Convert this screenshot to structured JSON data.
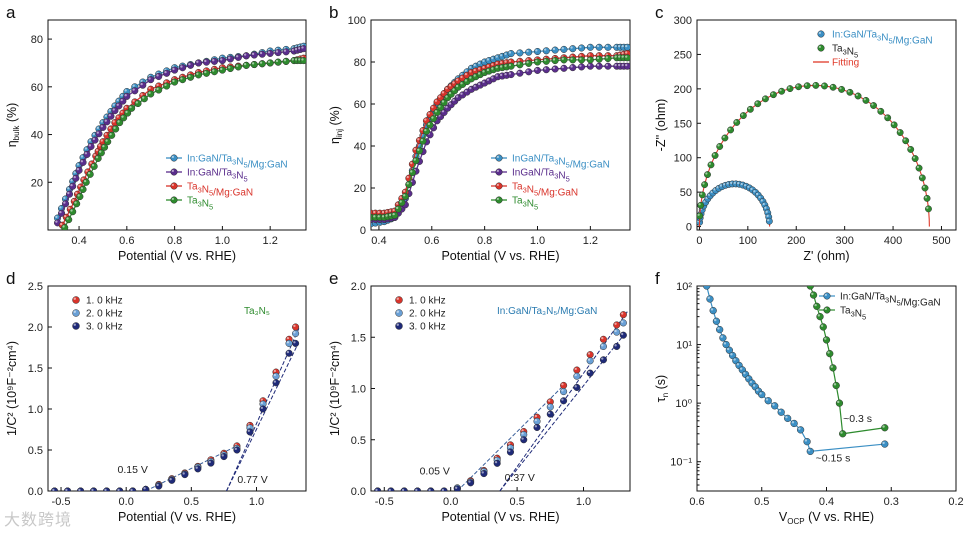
{
  "colors": {
    "blue": "#3b8fc4",
    "purple": "#5a2d8c",
    "red": "#d9342b",
    "green": "#2e8b2e",
    "navy": "#1f2a78",
    "lightblue": "#6aa0d6",
    "fit": "#e03a2a",
    "teal": "#2a7bb0"
  },
  "watermark": "大数跨境",
  "chart_data": [
    {
      "id": "a",
      "type": "line",
      "letter": "a",
      "xlabel": "Potential (V vs. RHE)",
      "ylabel": "η_bulk (%)",
      "xlim": [
        0.27,
        1.35
      ],
      "ylim": [
        0,
        88
      ],
      "xticks": [
        0.4,
        0.6,
        0.8,
        1.0,
        1.2
      ],
      "xticklabels": [
        "0.4",
        "0.6",
        "0.8",
        "1.0",
        "1.2"
      ],
      "yticks": [
        20,
        40,
        60,
        80
      ],
      "yticklabels": [
        "20",
        "40",
        "60",
        "80"
      ],
      "legend": [
        "In:GaN/Ta3N5/Mg:GaN",
        "In:GaN/Ta3N5",
        "Ta3N5/Mg:GaN",
        "Ta3N5"
      ],
      "series": [
        {
          "name": "In:GaN/Ta3N5/Mg:GaN",
          "color": "blue",
          "x": [
            0.31,
            0.36,
            0.4,
            0.45,
            0.5,
            0.55,
            0.6,
            0.7,
            0.8,
            0.9,
            1.0,
            1.1,
            1.2,
            1.3,
            1.34
          ],
          "y": [
            5,
            17,
            27,
            37,
            45,
            52,
            58,
            64,
            68,
            70,
            72,
            73,
            75,
            76,
            77
          ]
        },
        {
          "name": "In:GaN/Ta3N5",
          "color": "purple",
          "x": [
            0.31,
            0.36,
            0.4,
            0.45,
            0.5,
            0.55,
            0.6,
            0.7,
            0.8,
            0.9,
            1.0,
            1.1,
            1.2,
            1.3,
            1.34
          ],
          "y": [
            3,
            15,
            25,
            35,
            43,
            50,
            56,
            63,
            67,
            70,
            71,
            73,
            74,
            75,
            76
          ]
        },
        {
          "name": "Ta3N5/Mg:GaN",
          "color": "red",
          "x": [
            0.33,
            0.38,
            0.42,
            0.47,
            0.5,
            0.55,
            0.6,
            0.7,
            0.8,
            0.9,
            1.0,
            1.1,
            1.2,
            1.3,
            1.34
          ],
          "y": [
            2,
            12,
            21,
            31,
            37,
            45,
            51,
            59,
            63,
            66,
            68,
            69,
            70,
            71,
            72
          ]
        },
        {
          "name": "Ta3N5",
          "color": "green",
          "x": [
            0.34,
            0.39,
            0.43,
            0.48,
            0.52,
            0.57,
            0.62,
            0.7,
            0.8,
            0.9,
            1.0,
            1.1,
            1.2,
            1.3,
            1.34
          ],
          "y": [
            1,
            11,
            20,
            30,
            37,
            45,
            51,
            57,
            62,
            65,
            67,
            69,
            70,
            71,
            71
          ]
        }
      ]
    },
    {
      "id": "b",
      "type": "line",
      "letter": "b",
      "xlabel": "Potential (V vs. RHE)",
      "ylabel": "η_inj (%)",
      "xlim": [
        0.37,
        1.35
      ],
      "ylim": [
        0,
        100
      ],
      "xticks": [
        0.4,
        0.6,
        0.8,
        1.0,
        1.2
      ],
      "xticklabels": [
        "0.4",
        "0.6",
        "0.8",
        "1.0",
        "1.2"
      ],
      "yticks": [
        0,
        20,
        40,
        60,
        80,
        100
      ],
      "yticklabels": [
        "0",
        "20",
        "40",
        "60",
        "80",
        "100"
      ],
      "legend": [
        "InGaN/Ta3N5/Mg:GaN",
        "InGaN/Ta3N5",
        "Ta3N5/Mg:GaN",
        "Ta3N5"
      ],
      "series": [
        {
          "name": "InGaN/Ta3N5/Mg:GaN",
          "color": "blue",
          "x": [
            0.37,
            0.42,
            0.46,
            0.5,
            0.54,
            0.58,
            0.62,
            0.66,
            0.7,
            0.75,
            0.8,
            0.85,
            0.9,
            1.0,
            1.1,
            1.2,
            1.3,
            1.34
          ],
          "y": [
            3,
            4,
            6,
            15,
            35,
            50,
            60,
            67,
            72,
            77,
            80,
            82,
            84,
            85,
            86,
            87,
            87,
            87
          ]
        },
        {
          "name": "InGaN/Ta3N5",
          "color": "purple",
          "x": [
            0.37,
            0.42,
            0.46,
            0.5,
            0.54,
            0.58,
            0.62,
            0.66,
            0.7,
            0.75,
            0.8,
            0.85,
            0.9,
            1.0,
            1.1,
            1.2,
            1.3,
            1.34
          ],
          "y": [
            5,
            5,
            6,
            12,
            28,
            42,
            52,
            58,
            63,
            67,
            70,
            73,
            74,
            76,
            77,
            78,
            78,
            78
          ]
        },
        {
          "name": "Ta3N5/Mg:GaN",
          "color": "red",
          "x": [
            0.37,
            0.42,
            0.46,
            0.5,
            0.54,
            0.58,
            0.62,
            0.66,
            0.7,
            0.75,
            0.8,
            0.85,
            0.9,
            1.0,
            1.1,
            1.2,
            1.3,
            1.34
          ],
          "y": [
            8,
            8,
            9,
            18,
            38,
            52,
            61,
            67,
            71,
            75,
            77,
            79,
            80,
            81,
            82,
            83,
            83,
            84
          ]
        },
        {
          "name": "Ta3N5",
          "color": "green",
          "x": [
            0.37,
            0.42,
            0.46,
            0.5,
            0.54,
            0.58,
            0.62,
            0.66,
            0.7,
            0.75,
            0.8,
            0.85,
            0.9,
            1.0,
            1.1,
            1.2,
            1.3,
            1.34
          ],
          "y": [
            6,
            6,
            7,
            16,
            33,
            47,
            56,
            63,
            68,
            72,
            75,
            77,
            78,
            80,
            81,
            81,
            82,
            82
          ]
        }
      ]
    },
    {
      "id": "c",
      "type": "scatter",
      "letter": "c",
      "xlabel": "Z' (ohm)",
      "ylabel": "-Z'' (ohm)",
      "xlim": [
        -5,
        530
      ],
      "ylim": [
        -5,
        300
      ],
      "xticks": [
        0,
        100,
        200,
        300,
        400,
        500
      ],
      "xticklabels": [
        "0",
        "100",
        "200",
        "300",
        "400",
        "500"
      ],
      "yticks": [
        0,
        50,
        100,
        150,
        200,
        250,
        300
      ],
      "yticklabels": [
        "0",
        "50",
        "100",
        "150",
        "200",
        "250",
        "300"
      ],
      "legend": [
        "In:GaN/Ta3N5/Mg:GaN",
        "Ta3N5",
        "Fitting"
      ],
      "series": [
        {
          "name": "In:GaN/Ta3N5/Mg:GaN",
          "color": "blue",
          "arc": {
            "x0": 0,
            "x1": 145,
            "ymax": 62
          }
        },
        {
          "name": "Ta3N5",
          "color": "green",
          "arc": {
            "x0": 0,
            "x1": 475,
            "ymax": 205
          }
        }
      ]
    },
    {
      "id": "d",
      "type": "scatter",
      "letter": "d",
      "xlabel": "Potential (V vs. RHE)",
      "ylabel": "1/C² (10⁹F⁻²cm⁴)",
      "xlim": [
        -0.6,
        1.38
      ],
      "ylim": [
        0,
        2.5
      ],
      "xticks": [
        -0.5,
        0.0,
        0.5,
        1.0
      ],
      "xticklabels": [
        "-0.5",
        "0.0",
        "0.5",
        "1.0"
      ],
      "yticks": [
        0,
        0.5,
        1.0,
        1.5,
        2.0,
        2.5
      ],
      "yticklabels": [
        "0.0",
        "0.5",
        "1.0",
        "1.5",
        "2.0",
        "2.5"
      ],
      "legend": [
        "1. 0 kHz",
        "2. 0 kHz",
        "3. 0 kHz"
      ],
      "sample_label": "Ta₃N₅",
      "annotations": [
        {
          "text": "0.15 V",
          "x": 0.05,
          "y": 0.22
        },
        {
          "text": "0.77 V",
          "x": 0.97,
          "y": 0.1
        }
      ],
      "series": [
        {
          "name": "1. 0 kHz",
          "color": "red",
          "x": [
            -0.55,
            -0.45,
            -0.35,
            -0.25,
            -0.15,
            -0.05,
            0.05,
            0.15,
            0.25,
            0.35,
            0.45,
            0.55,
            0.65,
            0.75,
            0.85,
            0.95,
            1.05,
            1.15,
            1.25,
            1.3
          ],
          "y": [
            0,
            0,
            0,
            0,
            0,
            0,
            0,
            0.02,
            0.08,
            0.15,
            0.22,
            0.3,
            0.38,
            0.46,
            0.55,
            0.8,
            1.1,
            1.45,
            1.85,
            2.0
          ]
        },
        {
          "name": "2. 0 kHz",
          "color": "lightblue",
          "x": [
            -0.55,
            -0.45,
            -0.35,
            -0.25,
            -0.15,
            -0.05,
            0.05,
            0.15,
            0.25,
            0.35,
            0.45,
            0.55,
            0.65,
            0.75,
            0.85,
            0.95,
            1.05,
            1.15,
            1.25,
            1.3
          ],
          "y": [
            0,
            0,
            0,
            0,
            0,
            0,
            0,
            0.02,
            0.07,
            0.14,
            0.21,
            0.29,
            0.36,
            0.44,
            0.52,
            0.77,
            1.06,
            1.4,
            1.8,
            1.92
          ]
        },
        {
          "name": "3. 0 kHz",
          "color": "navy",
          "x": [
            -0.55,
            -0.45,
            -0.35,
            -0.25,
            -0.15,
            -0.05,
            0.05,
            0.15,
            0.25,
            0.35,
            0.45,
            0.55,
            0.65,
            0.75,
            0.85,
            0.95,
            1.05,
            1.15,
            1.25,
            1.3
          ],
          "y": [
            0,
            0,
            0,
            0,
            0,
            0,
            0,
            0.02,
            0.06,
            0.13,
            0.2,
            0.27,
            0.34,
            0.42,
            0.5,
            0.72,
            1.0,
            1.32,
            1.68,
            1.8
          ]
        }
      ]
    },
    {
      "id": "e",
      "type": "scatter",
      "letter": "e",
      "xlabel": "Potential (V vs. RHE)",
      "ylabel": "1/C² (10⁹F⁻²cm⁴)",
      "xlim": [
        -0.6,
        1.35
      ],
      "ylim": [
        0,
        2.0
      ],
      "xticks": [
        -0.5,
        0.0,
        0.5,
        1.0
      ],
      "xticklabels": [
        "-0.5",
        "0.0",
        "0.5",
        "1.0"
      ],
      "yticks": [
        0,
        0.5,
        1.0,
        1.5,
        2.0
      ],
      "yticklabels": [
        "0.0",
        "0.5",
        "1.0",
        "1.5",
        "2.0"
      ],
      "legend": [
        "1. 0 kHz",
        "2. 0 kHz",
        "3. 0 kHz"
      ],
      "sample_label": "In:GaN/Ta₃N₅/Mg:GaN",
      "annotations": [
        {
          "text": "0.05 V",
          "x": -0.12,
          "y": 0.16
        },
        {
          "text": "0.37 V",
          "x": 0.52,
          "y": 0.1
        }
      ],
      "series": [
        {
          "name": "1. 0 kHz",
          "color": "red",
          "x": [
            -0.55,
            -0.45,
            -0.35,
            -0.25,
            -0.15,
            -0.05,
            0.05,
            0.15,
            0.25,
            0.35,
            0.45,
            0.55,
            0.65,
            0.75,
            0.85,
            0.95,
            1.05,
            1.15,
            1.25,
            1.3
          ],
          "y": [
            0,
            0,
            0,
            0,
            0,
            0,
            0.03,
            0.1,
            0.2,
            0.32,
            0.45,
            0.58,
            0.72,
            0.87,
            1.03,
            1.18,
            1.33,
            1.48,
            1.62,
            1.72
          ]
        },
        {
          "name": "2. 0 kHz",
          "color": "lightblue",
          "x": [
            -0.55,
            -0.45,
            -0.35,
            -0.25,
            -0.15,
            -0.05,
            0.05,
            0.15,
            0.25,
            0.35,
            0.45,
            0.55,
            0.65,
            0.75,
            0.85,
            0.95,
            1.05,
            1.15,
            1.25,
            1.3
          ],
          "y": [
            0,
            0,
            0,
            0,
            0,
            0,
            0.03,
            0.09,
            0.19,
            0.3,
            0.42,
            0.55,
            0.68,
            0.82,
            0.97,
            1.12,
            1.27,
            1.41,
            1.55,
            1.64
          ]
        },
        {
          "name": "3. 0 kHz",
          "color": "navy",
          "x": [
            -0.55,
            -0.45,
            -0.35,
            -0.25,
            -0.15,
            -0.05,
            0.05,
            0.15,
            0.25,
            0.35,
            0.45,
            0.55,
            0.65,
            0.75,
            0.85,
            0.95,
            1.05,
            1.15,
            1.25,
            1.3
          ],
          "y": [
            0,
            0,
            0,
            0,
            0,
            0,
            0.02,
            0.08,
            0.17,
            0.27,
            0.38,
            0.5,
            0.62,
            0.75,
            0.88,
            1.01,
            1.15,
            1.28,
            1.41,
            1.52
          ]
        }
      ]
    },
    {
      "id": "f",
      "type": "scatter",
      "letter": "f",
      "xlabel": "V_OCP (V vs. RHE)",
      "ylabel": "τ_n (s)",
      "xlim": [
        0.6,
        0.2
      ],
      "ylim_log10": [
        -1.5,
        2
      ],
      "xticks": [
        0.6,
        0.5,
        0.4,
        0.3,
        0.2
      ],
      "xticklabels": [
        "0.6",
        "0.5",
        "0.4",
        "0.3",
        "0.2"
      ],
      "yticks_log10": [
        -1,
        0,
        1,
        2
      ],
      "yticklabels": [
        "10⁻¹",
        "10⁰",
        "10¹",
        "10²"
      ],
      "legend": [
        "In:GaN/Ta3N5/Mg:GaN",
        "Ta3N5"
      ],
      "annotations": [
        {
          "text": "~0.3 s",
          "x": 0.352,
          "y": 0.48
        },
        {
          "text": "~0.15 s",
          "x": 0.39,
          "y": 0.1
        }
      ],
      "series": [
        {
          "name": "In:GaN/Ta3N5/Mg:GaN",
          "color": "blue",
          "x": [
            0.585,
            0.58,
            0.575,
            0.57,
            0.565,
            0.56,
            0.555,
            0.55,
            0.545,
            0.54,
            0.535,
            0.53,
            0.525,
            0.52,
            0.515,
            0.51,
            0.505,
            0.5,
            0.49,
            0.48,
            0.47,
            0.46,
            0.45,
            0.44,
            0.43,
            0.425,
            0.31
          ],
          "y": [
            100,
            60,
            38,
            25,
            18,
            13,
            10,
            8,
            6.5,
            5.3,
            4.4,
            3.7,
            3.1,
            2.6,
            2.2,
            1.9,
            1.6,
            1.4,
            1.1,
            0.9,
            0.7,
            0.55,
            0.45,
            0.35,
            0.22,
            0.15,
            0.2
          ]
        },
        {
          "name": "Ta3N5",
          "color": "green",
          "x": [
            0.425,
            0.42,
            0.415,
            0.41,
            0.405,
            0.4,
            0.395,
            0.39,
            0.385,
            0.38,
            0.375,
            0.31
          ],
          "y": [
            100,
            70,
            45,
            30,
            20,
            12,
            7,
            4,
            2,
            1,
            0.3,
            0.38
          ]
        }
      ]
    }
  ]
}
